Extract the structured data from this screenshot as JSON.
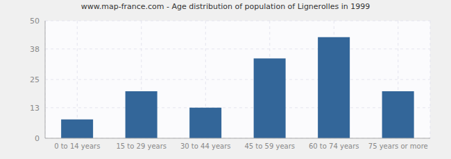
{
  "chart_data": {
    "type": "bar",
    "title": "www.map-france.com - Age distribution of population of Lignerolles in 1999",
    "categories": [
      "0 to 14 years",
      "15 to 29 years",
      "30 to 44 years",
      "45 to 59 years",
      "60 to 74 years",
      "75 years or more"
    ],
    "values": [
      8,
      20,
      13,
      34,
      43,
      20
    ],
    "color": "#336699",
    "ylim": [
      0,
      50
    ],
    "yticks": [
      0,
      13,
      25,
      38,
      50
    ],
    "grid": true
  }
}
